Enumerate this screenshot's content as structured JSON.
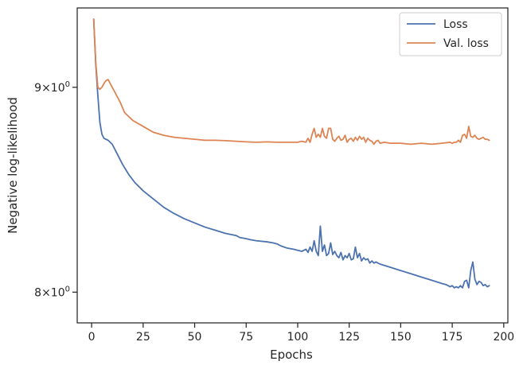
{
  "chart_data": {
    "type": "line",
    "title": "",
    "xlabel": "Epochs",
    "ylabel": "Negative log-likelihood",
    "x_scale": "linear",
    "y_scale": "log",
    "xlim": [
      -7,
      202
    ],
    "ylim": [
      7.86,
      9.42
    ],
    "grid": false,
    "legend_position": "top-right",
    "x_ticks": [
      0,
      25,
      50,
      75,
      100,
      125,
      150,
      175,
      200
    ],
    "x_tick_labels": [
      "0",
      "25",
      "50",
      "75",
      "100",
      "125",
      "150",
      "175",
      "200"
    ],
    "y_ticks": [
      8,
      9
    ],
    "y_tick_base": "10",
    "y_tick_mantissa": [
      "8×",
      "9×"
    ],
    "y_tick_exponent": [
      "0",
      "0"
    ],
    "colors": {
      "Loss": "#4c72b0",
      "Val. loss": "#dd8452"
    },
    "series": [
      {
        "name": "Loss",
        "x": [
          1,
          2,
          3,
          4,
          5,
          6,
          8,
          10,
          12,
          15,
          18,
          21,
          25,
          30,
          35,
          40,
          45,
          50,
          55,
          60,
          65,
          70,
          72,
          75,
          77,
          80,
          85,
          88,
          90,
          92,
          95,
          98,
          100,
          102,
          104,
          105,
          106,
          107,
          108,
          109,
          110,
          111,
          112,
          113,
          114,
          115,
          116,
          117,
          118,
          119,
          120,
          121,
          122,
          123,
          124,
          125,
          126,
          127,
          128,
          129,
          130,
          131,
          132,
          133,
          134,
          135,
          136,
          137,
          138,
          140,
          145,
          150,
          155,
          160,
          165,
          170,
          172,
          174,
          175,
          176,
          177,
          178,
          179,
          180,
          181,
          182,
          183,
          184,
          185,
          186,
          187,
          188,
          189,
          190,
          191,
          192,
          193
        ],
        "y": [
          9.36,
          9.12,
          8.96,
          8.82,
          8.76,
          8.74,
          8.73,
          8.71,
          8.67,
          8.61,
          8.56,
          8.52,
          8.48,
          8.44,
          8.4,
          8.37,
          8.345,
          8.325,
          8.305,
          8.29,
          8.275,
          8.265,
          8.255,
          8.25,
          8.245,
          8.24,
          8.235,
          8.23,
          8.225,
          8.215,
          8.205,
          8.2,
          8.195,
          8.19,
          8.2,
          8.185,
          8.21,
          8.19,
          8.24,
          8.19,
          8.17,
          8.31,
          8.19,
          8.22,
          8.17,
          8.18,
          8.23,
          8.175,
          8.19,
          8.17,
          8.16,
          8.185,
          8.15,
          8.17,
          8.16,
          8.18,
          8.15,
          8.155,
          8.21,
          8.16,
          8.18,
          8.145,
          8.16,
          8.15,
          8.155,
          8.135,
          8.145,
          8.135,
          8.14,
          8.13,
          8.115,
          8.1,
          8.085,
          8.07,
          8.055,
          8.04,
          8.035,
          8.025,
          8.03,
          8.02,
          8.025,
          8.02,
          8.03,
          8.02,
          8.05,
          8.055,
          8.02,
          8.1,
          8.14,
          8.06,
          8.035,
          8.05,
          8.045,
          8.03,
          8.035,
          8.025,
          8.03
        ]
      },
      {
        "name": "Val. loss",
        "x": [
          1,
          2,
          3,
          4,
          5,
          6,
          7,
          8,
          10,
          12,
          14,
          16,
          18,
          20,
          25,
          30,
          35,
          40,
          45,
          50,
          55,
          60,
          65,
          70,
          75,
          80,
          85,
          90,
          95,
          100,
          102,
          104,
          105,
          106,
          107,
          108,
          109,
          110,
          111,
          112,
          113,
          114,
          115,
          116,
          117,
          118,
          119,
          120,
          121,
          122,
          123,
          124,
          125,
          126,
          127,
          128,
          129,
          130,
          131,
          132,
          133,
          134,
          135,
          136,
          137,
          138,
          139,
          140,
          142,
          145,
          150,
          155,
          160,
          165,
          170,
          174,
          175,
          176,
          177,
          178,
          179,
          180,
          181,
          182,
          183,
          184,
          185,
          186,
          187,
          188,
          189,
          190,
          191,
          192,
          193
        ],
        "y": [
          9.36,
          9.13,
          9.0,
          8.99,
          9.0,
          9.02,
          9.035,
          9.04,
          9.0,
          8.96,
          8.92,
          8.87,
          8.85,
          8.83,
          8.8,
          8.77,
          8.755,
          8.745,
          8.74,
          8.735,
          8.73,
          8.73,
          8.728,
          8.725,
          8.722,
          8.72,
          8.722,
          8.72,
          8.72,
          8.72,
          8.725,
          8.72,
          8.74,
          8.72,
          8.76,
          8.79,
          8.745,
          8.76,
          8.745,
          8.79,
          8.75,
          8.74,
          8.79,
          8.79,
          8.735,
          8.725,
          8.74,
          8.75,
          8.73,
          8.735,
          8.755,
          8.72,
          8.735,
          8.74,
          8.725,
          8.745,
          8.73,
          8.75,
          8.735,
          8.745,
          8.72,
          8.74,
          8.73,
          8.725,
          8.71,
          8.725,
          8.73,
          8.715,
          8.72,
          8.715,
          8.715,
          8.71,
          8.715,
          8.71,
          8.715,
          8.72,
          8.715,
          8.72,
          8.72,
          8.73,
          8.72,
          8.755,
          8.76,
          8.74,
          8.8,
          8.75,
          8.745,
          8.755,
          8.74,
          8.735,
          8.74,
          8.745,
          8.735,
          8.735,
          8.73
        ]
      }
    ]
  }
}
